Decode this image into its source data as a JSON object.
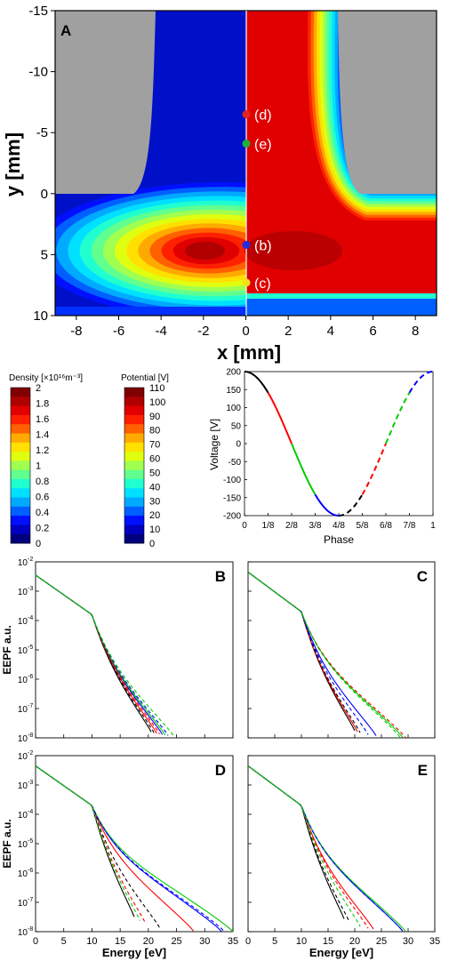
{
  "panel_a": {
    "letter": "A",
    "xlabel": "x [mm]",
    "ylabel": "y [mm]",
    "xticks": [
      "-8",
      "-6",
      "-4",
      "-2",
      "0",
      "2",
      "4",
      "6",
      "8"
    ],
    "yticks": [
      "-15",
      "-10",
      "-5",
      "0",
      "5",
      "10"
    ],
    "xlim": [
      -9,
      9
    ],
    "ylim": [
      -15,
      10
    ],
    "points": [
      {
        "label": "(d)",
        "y": -6.5,
        "color": "#e0261e"
      },
      {
        "label": "(e)",
        "y": -4.1,
        "color": "#20b040"
      },
      {
        "label": "(b)",
        "y": 4.2,
        "color": "#1f2fe0"
      },
      {
        "label": "(c)",
        "y": 7.3,
        "color": "#f2e21a"
      }
    ]
  },
  "density_legend": {
    "title": "Density [×10¹⁶m⁻³]",
    "levels": [
      "2",
      "1.8",
      "1.6",
      "1.4",
      "1.2",
      "1",
      "0.8",
      "0.6",
      "0.4",
      "0.2",
      "0"
    ]
  },
  "potential_legend": {
    "title": "Potential [V]",
    "levels": [
      "110",
      "100",
      "90",
      "80",
      "70",
      "60",
      "50",
      "40",
      "30",
      "20",
      "10",
      "0"
    ]
  },
  "colors": {
    "jet": [
      "#00007f",
      "#0000c0",
      "#0010ff",
      "#0060ff",
      "#00aaff",
      "#00e0ff",
      "#20ffd0",
      "#60ff90",
      "#a0ff50",
      "#e0ff10",
      "#ffe000",
      "#ffaa00",
      "#ff6000",
      "#ff2000",
      "#e00000",
      "#b00000",
      "#800000"
    ],
    "phase_segments": [
      "#000000",
      "#ff0000",
      "#00cc00",
      "#0000ff"
    ]
  },
  "chart_data": [
    {
      "type": "line",
      "xlabel": "Phase",
      "ylabel": "Voltage [V]",
      "x_ticks": [
        "0",
        "1/8",
        "2/8",
        "3/8",
        "4/8",
        "5/8",
        "6/8",
        "7/8",
        "1"
      ],
      "y_ticks": [
        "200",
        "150",
        "100",
        "50",
        "0",
        "-50",
        "-100",
        "-150",
        "-200"
      ],
      "xlim": [
        0,
        1
      ],
      "ylim": [
        -200,
        200
      ],
      "function": "V = 200*cos(2*pi*phase)",
      "series": [
        {
          "color": "#000000",
          "style": "solid",
          "x": [
            0,
            0.125
          ]
        },
        {
          "color": "#ff0000",
          "style": "solid",
          "x": [
            0.125,
            0.25
          ]
        },
        {
          "color": "#00cc00",
          "style": "solid",
          "x": [
            0.25,
            0.375
          ]
        },
        {
          "color": "#0000ff",
          "style": "solid",
          "x": [
            0.375,
            0.5
          ]
        },
        {
          "color": "#000000",
          "style": "dashed",
          "x": [
            0.5,
            0.625
          ]
        },
        {
          "color": "#ff0000",
          "style": "dashed",
          "x": [
            0.625,
            0.75
          ]
        },
        {
          "color": "#00cc00",
          "style": "dashed",
          "x": [
            0.75,
            0.875
          ]
        },
        {
          "color": "#0000ff",
          "style": "dashed",
          "x": [
            0.875,
            1.0
          ]
        }
      ]
    },
    {
      "type": "line",
      "panel": "B",
      "log_y": true,
      "ylim": [
        1e-08,
        0.01
      ],
      "xlim": [
        0,
        35
      ],
      "ylabel": "EEPF a.u.",
      "y_ticks": [
        "10-2",
        "10-3",
        "10-4",
        "10-5",
        "10-6",
        "10-7",
        "10-8"
      ],
      "curves": [
        {
          "color": "#000000",
          "style": "solid",
          "cutoff": 20.5
        },
        {
          "color": "#ff0000",
          "style": "solid",
          "cutoff": 21.5
        },
        {
          "color": "#0000ff",
          "style": "solid",
          "cutoff": 22.5
        },
        {
          "color": "#00cc00",
          "style": "solid",
          "cutoff": 23.0
        },
        {
          "color": "#000000",
          "style": "dashed",
          "cutoff": 21.0
        },
        {
          "color": "#ff0000",
          "style": "dashed",
          "cutoff": 22.0
        },
        {
          "color": "#0000ff",
          "style": "dashed",
          "cutoff": 23.5
        },
        {
          "color": "#00cc00",
          "style": "dashed",
          "cutoff": 24.5
        }
      ]
    },
    {
      "type": "line",
      "panel": "C",
      "log_y": true,
      "ylim": [
        1e-08,
        0.01
      ],
      "xlim": [
        0,
        35
      ],
      "curves": [
        {
          "color": "#000000",
          "style": "solid",
          "cutoff": 20.0
        },
        {
          "color": "#ff0000",
          "style": "solid",
          "cutoff": 20.5
        },
        {
          "color": "#0000ff",
          "style": "solid",
          "cutoff": 24.0
        },
        {
          "color": "#00cc00",
          "style": "solid",
          "cutoff": 29.0
        },
        {
          "color": "#000000",
          "style": "dashed",
          "cutoff": 21.0
        },
        {
          "color": "#ff0000",
          "style": "dashed",
          "cutoff": 29.5
        },
        {
          "color": "#0000ff",
          "style": "dashed",
          "cutoff": 22.5
        },
        {
          "color": "#00cc00",
          "style": "dashed",
          "cutoff": 28.5
        }
      ]
    },
    {
      "type": "line",
      "panel": "D",
      "log_y": true,
      "ylim": [
        1e-08,
        0.01
      ],
      "xlim": [
        0,
        35
      ],
      "xlabel": "Energy [eV]",
      "ylabel": "EEPF a.u.",
      "x_ticks": [
        "0",
        "5",
        "10",
        "15",
        "20",
        "25",
        "30",
        "35"
      ],
      "y_ticks": [
        "10-2",
        "10-3",
        "10-4",
        "10-5",
        "10-6",
        "10-7",
        "10-8"
      ],
      "curves": [
        {
          "color": "#000000",
          "style": "solid",
          "cutoff": 17.5
        },
        {
          "color": "#ff0000",
          "style": "solid",
          "cutoff": 28.0
        },
        {
          "color": "#0000ff",
          "style": "solid",
          "cutoff": 33.0
        },
        {
          "color": "#00cc00",
          "style": "solid",
          "cutoff": 35.0
        },
        {
          "color": "#000000",
          "style": "dashed",
          "cutoff": 22.0
        },
        {
          "color": "#ff0000",
          "style": "dashed",
          "cutoff": 19.5
        },
        {
          "color": "#0000ff",
          "style": "dashed",
          "cutoff": 33.5
        },
        {
          "color": "#00cc00",
          "style": "dashed",
          "cutoff": 18.5
        }
      ]
    },
    {
      "type": "line",
      "panel": "E",
      "log_y": true,
      "ylim": [
        1e-08,
        0.01
      ],
      "xlim": [
        0,
        35
      ],
      "xlabel": "Energy [eV]",
      "x_ticks": [
        "0",
        "5",
        "10",
        "15",
        "20",
        "25",
        "30",
        "35"
      ],
      "curves": [
        {
          "color": "#000000",
          "style": "solid",
          "cutoff": 18.0
        },
        {
          "color": "#ff0000",
          "style": "solid",
          "cutoff": 23.5
        },
        {
          "color": "#0000ff",
          "style": "solid",
          "cutoff": 29.0
        },
        {
          "color": "#00cc00",
          "style": "solid",
          "cutoff": 29.5
        },
        {
          "color": "#000000",
          "style": "dashed",
          "cutoff": 19.0
        },
        {
          "color": "#ff0000",
          "style": "dashed",
          "cutoff": 22.5
        },
        {
          "color": "#0000ff",
          "style": "dashed",
          "cutoff": 29.0
        },
        {
          "color": "#00cc00",
          "style": "dashed",
          "cutoff": 21.0
        }
      ]
    }
  ],
  "eepf_letters": [
    "B",
    "C",
    "D",
    "E"
  ]
}
